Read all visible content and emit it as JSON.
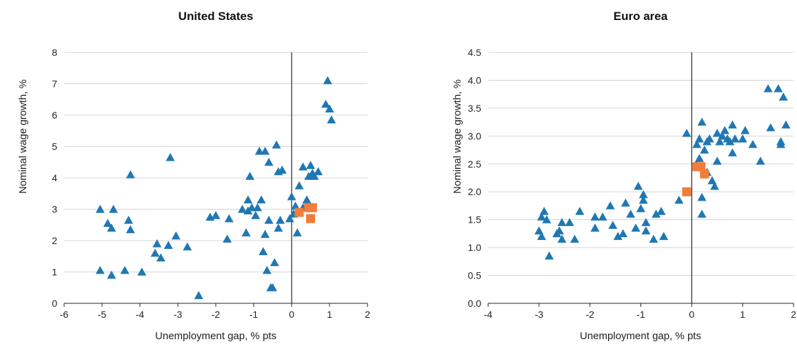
{
  "colors": {
    "triangle": "#1f78b4",
    "square": "#f07d3a",
    "grid": "#d4d4d4",
    "axis": "#222222"
  },
  "chart_data": [
    {
      "type": "scatter",
      "title": "United States",
      "xlabel": "Unemployment gap, % pts",
      "ylabel": "Nominal wage growth, %",
      "xlim": [
        -6,
        2
      ],
      "ylim": [
        0,
        8
      ],
      "xticks": [
        -6,
        -5,
        -4,
        -3,
        -2,
        -1,
        0,
        1,
        2
      ],
      "yticks": [
        0,
        1,
        2,
        3,
        4,
        5,
        6,
        7,
        8
      ],
      "ytick_decimals": 0,
      "grid": "horizontal",
      "zero_line": 0,
      "series": [
        {
          "marker": "triangle",
          "points": [
            [
              -5.05,
              1.05
            ],
            [
              -4.75,
              0.9
            ],
            [
              -4.4,
              1.05
            ],
            [
              -3.95,
              1.0
            ],
            [
              -5.05,
              3.0
            ],
            [
              -4.85,
              2.55
            ],
            [
              -4.75,
              2.4
            ],
            [
              -4.7,
              3.0
            ],
            [
              -4.3,
              2.65
            ],
            [
              -4.25,
              2.35
            ],
            [
              -4.25,
              4.1
            ],
            [
              -3.6,
              1.6
            ],
            [
              -3.55,
              1.9
            ],
            [
              -3.45,
              1.45
            ],
            [
              -3.25,
              1.85
            ],
            [
              -3.05,
              2.15
            ],
            [
              -2.75,
              1.8
            ],
            [
              -3.2,
              4.65
            ],
            [
              -2.45,
              0.25
            ],
            [
              -2.15,
              2.75
            ],
            [
              -2.0,
              2.8
            ],
            [
              -1.7,
              2.05
            ],
            [
              -1.65,
              2.7
            ],
            [
              -1.3,
              3.0
            ],
            [
              -1.2,
              2.25
            ],
            [
              -1.15,
              2.95
            ],
            [
              -1.15,
              3.3
            ],
            [
              -1.1,
              4.05
            ],
            [
              -1.05,
              3.05
            ],
            [
              -0.95,
              2.8
            ],
            [
              -0.9,
              3.05
            ],
            [
              -0.85,
              4.85
            ],
            [
              -0.8,
              3.3
            ],
            [
              -0.75,
              1.65
            ],
            [
              -0.7,
              2.2
            ],
            [
              -0.7,
              4.85
            ],
            [
              -0.65,
              1.05
            ],
            [
              -0.6,
              2.65
            ],
            [
              -0.6,
              4.5
            ],
            [
              -0.55,
              0.5
            ],
            [
              -0.5,
              0.5
            ],
            [
              -0.45,
              1.3
            ],
            [
              -0.4,
              5.05
            ],
            [
              -0.35,
              2.4
            ],
            [
              -0.35,
              4.2
            ],
            [
              -0.3,
              2.65
            ],
            [
              -0.25,
              4.25
            ],
            [
              -0.05,
              2.7
            ],
            [
              0.0,
              3.4
            ],
            [
              0.05,
              2.85
            ],
            [
              0.1,
              3.1
            ],
            [
              0.15,
              2.25
            ],
            [
              0.2,
              2.9
            ],
            [
              0.2,
              3.75
            ],
            [
              0.3,
              3.05
            ],
            [
              0.3,
              4.35
            ],
            [
              0.4,
              3.3
            ],
            [
              0.45,
              4.05
            ],
            [
              0.5,
              4.4
            ],
            [
              0.55,
              4.15
            ],
            [
              0.6,
              4.05
            ],
            [
              0.7,
              4.2
            ],
            [
              0.9,
              6.35
            ],
            [
              0.95,
              7.1
            ],
            [
              1.0,
              6.2
            ],
            [
              1.05,
              5.85
            ]
          ]
        },
        {
          "marker": "square",
          "points": [
            [
              0.2,
              2.9
            ],
            [
              0.45,
              3.05
            ],
            [
              0.55,
              3.05
            ],
            [
              0.5,
              2.7
            ]
          ]
        }
      ]
    },
    {
      "type": "scatter",
      "title": "Euro area",
      "xlabel": "Unemployment gap, % pts",
      "ylabel": "Nominal wage growth, %",
      "xlim": [
        -4,
        2
      ],
      "ylim": [
        0,
        4.5
      ],
      "xticks": [
        -4,
        -3,
        -2,
        -1,
        0,
        1,
        2
      ],
      "yticks": [
        0.0,
        0.5,
        1.0,
        1.5,
        2.0,
        2.5,
        3.0,
        3.5,
        4.0,
        4.5
      ],
      "ytick_decimals": 1,
      "grid": "horizontal",
      "zero_line": 0,
      "series": [
        {
          "marker": "triangle",
          "points": [
            [
              -3.0,
              1.3
            ],
            [
              -2.95,
              1.55
            ],
            [
              -2.95,
              1.2
            ],
            [
              -2.9,
              1.65
            ],
            [
              -2.85,
              1.5
            ],
            [
              -2.8,
              0.85
            ],
            [
              -2.65,
              1.25
            ],
            [
              -2.6,
              1.3
            ],
            [
              -2.55,
              1.45
            ],
            [
              -2.55,
              1.15
            ],
            [
              -2.4,
              1.45
            ],
            [
              -2.3,
              1.15
            ],
            [
              -2.2,
              1.65
            ],
            [
              -1.9,
              1.55
            ],
            [
              -1.9,
              1.35
            ],
            [
              -1.75,
              1.55
            ],
            [
              -1.6,
              1.75
            ],
            [
              -1.55,
              1.4
            ],
            [
              -1.45,
              1.2
            ],
            [
              -1.35,
              1.25
            ],
            [
              -1.3,
              1.8
            ],
            [
              -1.2,
              1.6
            ],
            [
              -1.1,
              1.35
            ],
            [
              -1.05,
              2.1
            ],
            [
              -1.0,
              1.7
            ],
            [
              -0.95,
              1.95
            ],
            [
              -0.95,
              1.85
            ],
            [
              -0.9,
              1.45
            ],
            [
              -0.9,
              1.3
            ],
            [
              -0.75,
              1.15
            ],
            [
              -0.7,
              1.6
            ],
            [
              -0.6,
              1.65
            ],
            [
              -0.55,
              1.2
            ],
            [
              -0.25,
              1.85
            ],
            [
              -0.1,
              3.05
            ],
            [
              0.1,
              2.85
            ],
            [
              0.1,
              2.5
            ],
            [
              0.15,
              2.6
            ],
            [
              0.15,
              2.95
            ],
            [
              0.2,
              1.6
            ],
            [
              0.2,
              1.9
            ],
            [
              0.2,
              3.25
            ],
            [
              0.25,
              2.75
            ],
            [
              0.3,
              2.35
            ],
            [
              0.3,
              2.9
            ],
            [
              0.35,
              2.95
            ],
            [
              0.4,
              2.2
            ],
            [
              0.45,
              2.1
            ],
            [
              0.5,
              3.05
            ],
            [
              0.5,
              2.55
            ],
            [
              0.55,
              2.9
            ],
            [
              0.6,
              3.0
            ],
            [
              0.65,
              3.1
            ],
            [
              0.7,
              2.95
            ],
            [
              0.75,
              2.9
            ],
            [
              0.8,
              2.7
            ],
            [
              0.8,
              3.2
            ],
            [
              0.85,
              2.95
            ],
            [
              1.0,
              2.95
            ],
            [
              1.05,
              3.1
            ],
            [
              1.2,
              2.85
            ],
            [
              1.35,
              2.55
            ],
            [
              1.5,
              3.85
            ],
            [
              1.55,
              3.15
            ],
            [
              1.7,
              3.85
            ],
            [
              1.75,
              2.85
            ],
            [
              1.75,
              2.9
            ],
            [
              1.8,
              3.7
            ],
            [
              1.85,
              3.2
            ]
          ]
        },
        {
          "marker": "square",
          "points": [
            [
              -0.1,
              2.0
            ],
            [
              0.1,
              2.45
            ],
            [
              0.18,
              2.45
            ],
            [
              0.25,
              2.32
            ]
          ]
        }
      ]
    }
  ]
}
